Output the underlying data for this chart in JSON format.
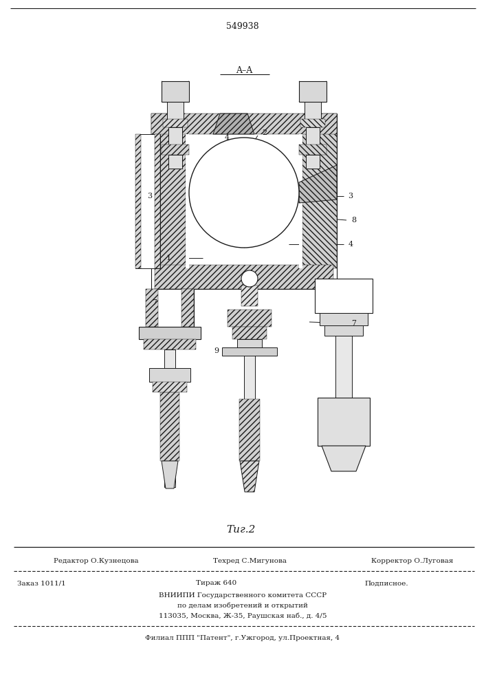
{
  "patent_number": "549938",
  "bg_color": "#ffffff",
  "line_color": "#1a1a1a",
  "figure_label": "Τиг.2",
  "editor_line": "Редактор О.Кузнецова",
  "techred_line": "Техред С.Мигунова",
  "corrector_line": "Корректор О.Луговая",
  "zakaz_line": "Заказ 1011/1",
  "tirazh_line": "Тираж 640",
  "podpisnoe_line": "Подписное.",
  "vnipi_line1": "ВНИИПИ Государственного комитета СССР",
  "vnipi_line2": "по делам изобретений и открытий",
  "vnipi_line3": "113035, Москва, Ж-35, Раушская наб., д. 4/5",
  "filial_line": "Филиал ППП \"Патент\", г.Ужгород, ул.Проектная, 4"
}
